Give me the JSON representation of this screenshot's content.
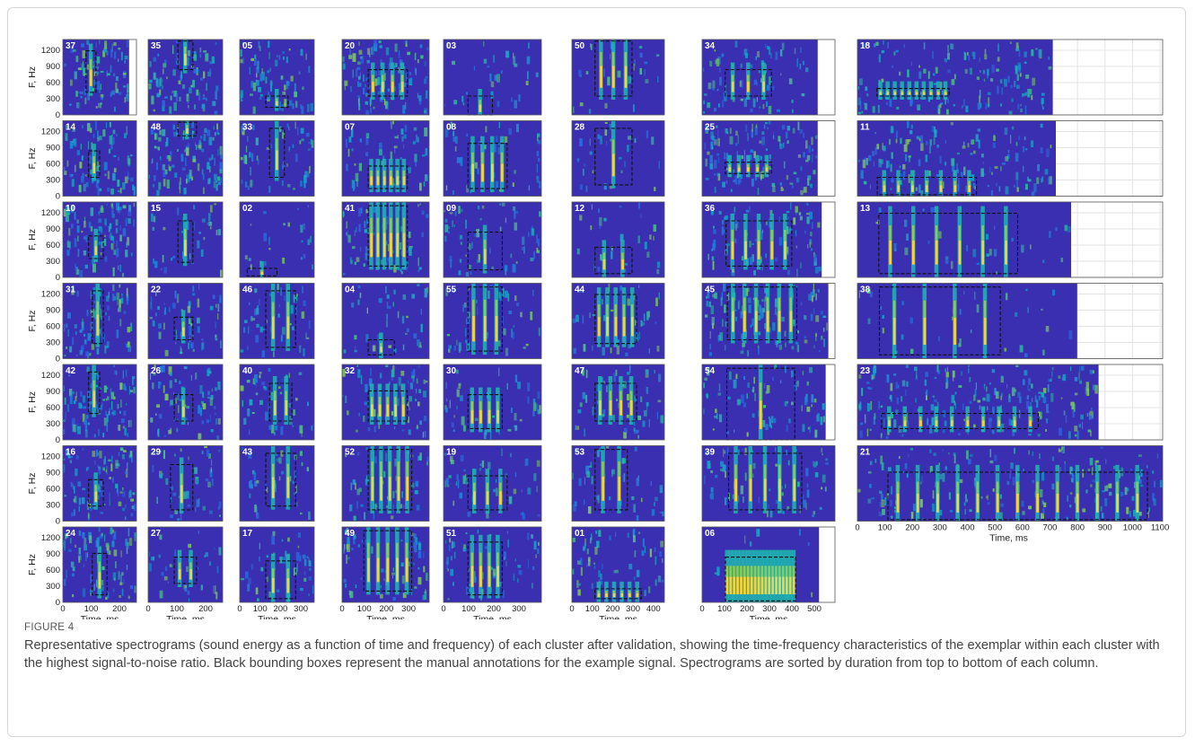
{
  "figure": {
    "y_label": "F, Hz",
    "x_label": "Time, ms",
    "y_ticks": [
      0,
      300,
      600,
      900,
      1200
    ],
    "columns": [
      {
        "panels": [
          "37",
          "14",
          "10",
          "31",
          "42",
          "16",
          "24"
        ],
        "x_ticks": [
          0,
          100,
          200
        ]
      },
      {
        "panels": [
          "35",
          "48",
          "15",
          "22",
          "26",
          "29",
          "27"
        ],
        "x_ticks": [
          0,
          100,
          200
        ]
      },
      {
        "panels": [
          "05",
          "33",
          "02",
          "46",
          "40",
          "43",
          "17"
        ],
        "x_ticks": [
          0,
          100,
          200,
          300
        ]
      },
      {
        "panels": [
          "20",
          "07",
          "41",
          "04",
          "32",
          "52",
          "49"
        ],
        "x_ticks": [
          0,
          100,
          200,
          300
        ]
      },
      {
        "panels": [
          "03",
          "08",
          "09",
          "55",
          "30",
          "19",
          "51"
        ],
        "x_ticks": [
          0,
          100,
          200,
          300
        ]
      },
      {
        "panels": [
          "50",
          "28",
          "12",
          "44",
          "47",
          "53",
          "01"
        ],
        "x_ticks": [
          0,
          100,
          200,
          300,
          400
        ]
      },
      {
        "panels": [
          "34",
          "25",
          "36",
          "45",
          "54",
          "39",
          "06"
        ],
        "x_ticks": [
          0,
          100,
          200,
          300,
          400,
          500
        ]
      },
      {
        "panels": [
          "18",
          "11",
          "13",
          "38",
          "23",
          "21"
        ],
        "x_ticks": [
          0,
          100,
          200,
          300,
          400,
          500,
          600,
          700,
          800,
          900,
          1000,
          1100
        ]
      }
    ],
    "label": "FIGURE 4",
    "caption": "Representative spectrograms (sound energy as a function of time and frequency) of each cluster after validation, showing the time-frequency characteristics of the exemplar within each cluster with the highest signal-to-noise ratio. Black bounding boxes represent the manual annotations for the example signal. Spectrograms are sorted by duration from top to bottom of each column."
  }
}
